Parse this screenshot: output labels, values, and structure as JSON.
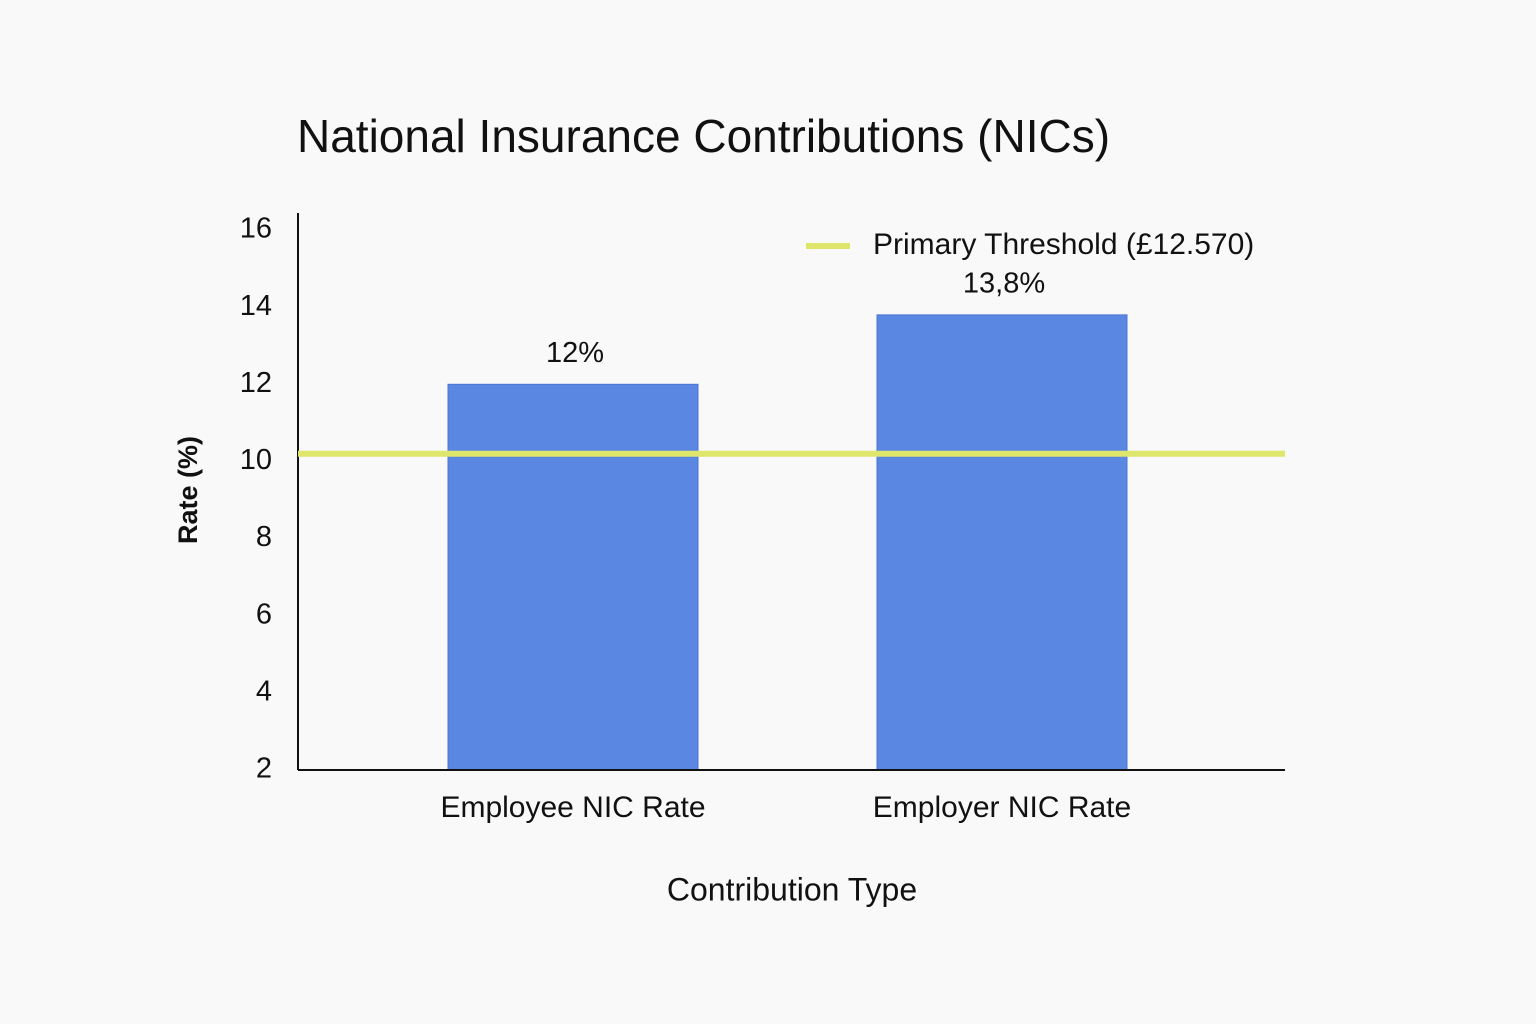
{
  "chart_data": {
    "type": "bar",
    "title": "National Insurance Contributions (NICs)",
    "x_label": "Contribution Type",
    "y_label": "Rate (%)",
    "categories": [
      "Employee NIC Rate",
      "Employer NIC Rate"
    ],
    "values": [
      12,
      13.8
    ],
    "value_labels": [
      "12%",
      "13,8%"
    ],
    "color": "#5a87e1",
    "ylim": [
      2,
      16
    ],
    "yticks": [
      2,
      4,
      6,
      8,
      10,
      12,
      14,
      16
    ],
    "reference_line": {
      "name": "Primary Threshold (£12.570)",
      "value": 10.2,
      "color": "#dfe66c"
    },
    "legend": "upper right",
    "grid": false
  }
}
